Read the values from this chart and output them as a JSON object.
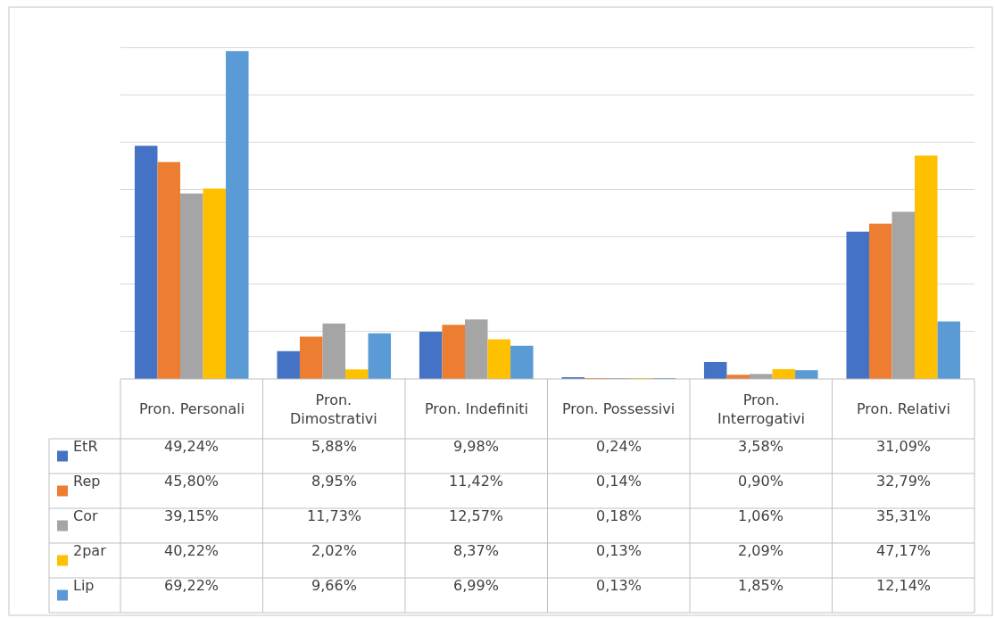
{
  "chart_data": {
    "type": "bar",
    "categories": [
      "Pron. Personali",
      "Pron. Dimostrativi",
      "Pron. Indefiniti",
      "Pron. Possessivi",
      "Pron. Interrogativi",
      "Pron. Relativi"
    ],
    "series": [
      {
        "name": "EtR",
        "color": "#4472c4",
        "values": [
          49.24,
          5.88,
          9.98,
          0.24,
          3.58,
          31.09
        ],
        "value_labels": [
          "49,24%",
          "5,88%",
          "9,98%",
          "0,24%",
          "3,58%",
          "31,09%"
        ]
      },
      {
        "name": "Rep",
        "color": "#ed7d31",
        "values": [
          45.8,
          8.95,
          11.42,
          0.14,
          0.9,
          32.79
        ],
        "value_labels": [
          "45,80%",
          "8,95%",
          "11,42%",
          "0,14%",
          "0,90%",
          "32,79%"
        ]
      },
      {
        "name": "Cor",
        "color": "#a5a5a5",
        "values": [
          39.15,
          11.73,
          12.57,
          0.18,
          1.06,
          35.31
        ],
        "value_labels": [
          "39,15%",
          "11,73%",
          "12,57%",
          "0,18%",
          "1,06%",
          "35,31%"
        ]
      },
      {
        "name": "2par",
        "color": "#ffc000",
        "values": [
          40.22,
          2.02,
          8.37,
          0.13,
          2.09,
          47.17
        ],
        "value_labels": [
          "40,22%",
          "2,02%",
          "8,37%",
          "0,13%",
          "2,09%",
          "47,17%"
        ]
      },
      {
        "name": "Lip",
        "color": "#5b9bd5",
        "values": [
          69.22,
          9.66,
          6.99,
          0.13,
          1.85,
          12.14
        ],
        "value_labels": [
          "69,22%",
          "9,66%",
          "6,99%",
          "0,13%",
          "1,85%",
          "12,14%"
        ]
      }
    ],
    "legend": "bottom left",
    "grid": "y"
  }
}
